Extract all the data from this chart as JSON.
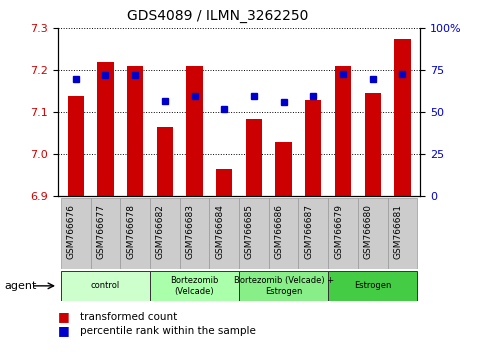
{
  "title": "GDS4089 / ILMN_3262250",
  "samples": [
    "GSM766676",
    "GSM766677",
    "GSM766678",
    "GSM766682",
    "GSM766683",
    "GSM766684",
    "GSM766685",
    "GSM766686",
    "GSM766687",
    "GSM766679",
    "GSM766680",
    "GSM766681"
  ],
  "transformed_count": [
    7.14,
    7.22,
    7.21,
    7.065,
    7.21,
    6.965,
    7.085,
    7.03,
    7.13,
    7.21,
    7.145,
    7.275
  ],
  "percentile_rank": [
    70,
    72,
    72,
    57,
    60,
    52,
    60,
    56,
    60,
    73,
    70,
    73
  ],
  "bar_color": "#cc0000",
  "dot_color": "#0000cc",
  "ylim_left": [
    6.9,
    7.3
  ],
  "ylim_right": [
    0,
    100
  ],
  "yticks_left": [
    6.9,
    7.0,
    7.1,
    7.2,
    7.3
  ],
  "yticks_right": [
    0,
    25,
    50,
    75,
    100
  ],
  "groups": [
    {
      "label": "control",
      "start": 0,
      "end": 3,
      "color": "#ccffcc"
    },
    {
      "label": "Bortezomib\n(Velcade)",
      "start": 3,
      "end": 6,
      "color": "#aaffaa"
    },
    {
      "label": "Bortezomib (Velcade) +\nEstrogen",
      "start": 6,
      "end": 9,
      "color": "#88ee88"
    },
    {
      "label": "Estrogen",
      "start": 9,
      "end": 12,
      "color": "#44cc44"
    }
  ],
  "agent_label": "agent",
  "legend_bar_label": "transformed count",
  "legend_dot_label": "percentile rank within the sample",
  "base_value": 6.9,
  "background_color": "#ffffff",
  "title_fontsize": 10,
  "tick_fontsize": 8,
  "bar_width": 0.55,
  "sample_box_color": "#cccccc",
  "sample_box_edge": "#999999"
}
